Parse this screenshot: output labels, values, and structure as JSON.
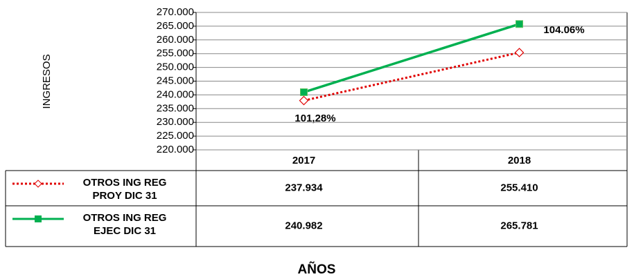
{
  "chart_data": {
    "type": "line",
    "x_label": "AÑOS",
    "y_label": "INGRESOS",
    "categories": [
      "2017",
      "2018"
    ],
    "series": [
      {
        "name": "OTROS ING REG PROY DIC 31",
        "color": "#e00000",
        "values": [
          237934,
          255410
        ],
        "value_labels": [
          "237.934",
          "255.410"
        ]
      },
      {
        "name": "OTROS ING REG EJEC DIC 31",
        "color": "#00b050",
        "values": [
          240982,
          265781
        ],
        "value_labels": [
          "240.982",
          "265.781"
        ]
      }
    ],
    "annotations": [
      "101,28%",
      "104.06%"
    ],
    "ylim": [
      220000,
      270000
    ],
    "yticks": [
      {
        "value": 220000,
        "label": "220.000"
      },
      {
        "value": 225000,
        "label": "225.000"
      },
      {
        "value": 230000,
        "label": "230.000"
      },
      {
        "value": 235000,
        "label": "235.000"
      },
      {
        "value": 240000,
        "label": "240.000"
      },
      {
        "value": 245000,
        "label": "245.000"
      },
      {
        "value": 250000,
        "label": "250.000"
      },
      {
        "value": 255000,
        "label": "255.000"
      },
      {
        "value": 260000,
        "label": "260.000"
      },
      {
        "value": 265000,
        "label": "265.000"
      },
      {
        "value": 270000,
        "label": "270.000"
      }
    ],
    "grid": true
  }
}
